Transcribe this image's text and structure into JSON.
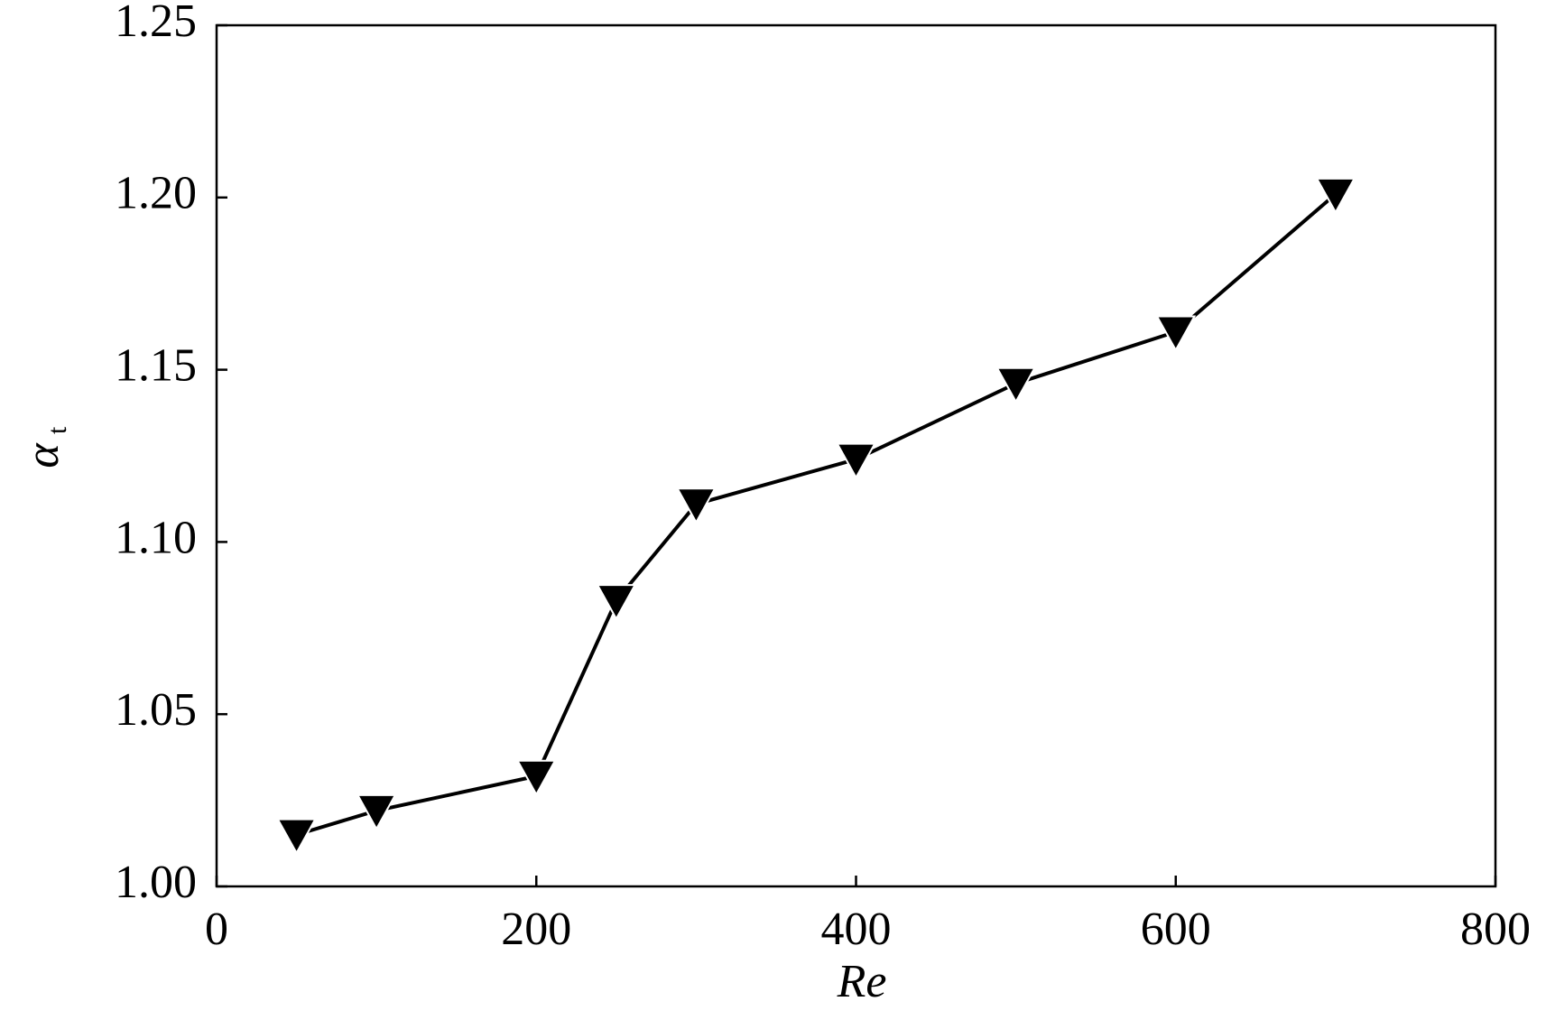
{
  "chart_data": {
    "type": "line",
    "xlabel": "Re",
    "ylabel": "α",
    "ylabel_sub": "t",
    "x": [
      50,
      100,
      200,
      250,
      300,
      400,
      500,
      600,
      700
    ],
    "series": [
      {
        "color": "#000000",
        "marker": "triangle-down",
        "values": [
          1.015,
          1.022,
          1.032,
          1.083,
          1.111,
          1.124,
          1.146,
          1.161,
          1.201
        ]
      }
    ],
    "xlim": [
      0,
      800
    ],
    "xticks": [
      0,
      200,
      400,
      600,
      800
    ],
    "ylim": [
      1.0,
      1.25
    ],
    "yticks": [
      {
        "value": 1.0,
        "label": "1.00"
      },
      1.05,
      {
        "value": 1.1,
        "label": "1.10"
      },
      1.15,
      {
        "value": 1.2,
        "label": "1.20"
      },
      1.25
    ],
    "grid": false
  }
}
